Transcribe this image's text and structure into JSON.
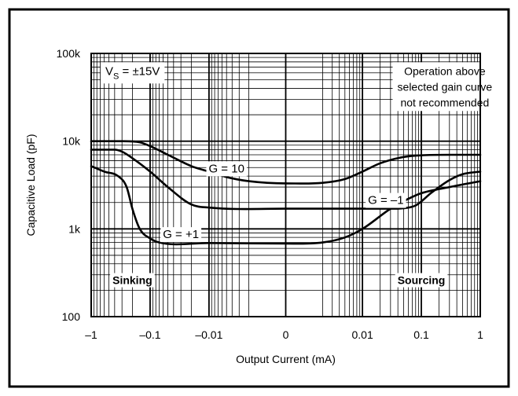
{
  "chart_data": {
    "type": "line",
    "xlabel": "Output Current (mA)",
    "ylabel": "Capacitive Load (pF)",
    "x_scale": "signed-log (sinh)",
    "y_scale": "log",
    "xlim": [
      -1,
      1
    ],
    "ylim": [
      100,
      100000
    ],
    "grid": true,
    "x_ticks": [
      {
        "value": -1,
        "label": "–1"
      },
      {
        "value": -0.1,
        "label": "–0.1"
      },
      {
        "value": -0.01,
        "label": "–0.01"
      },
      {
        "value": 0,
        "label": "0"
      },
      {
        "value": 0.01,
        "label": "0.01"
      },
      {
        "value": 0.1,
        "label": "0.1"
      },
      {
        "value": 1,
        "label": "1"
      }
    ],
    "y_ticks": [
      {
        "value": 100,
        "label": "100"
      },
      {
        "value": 1000,
        "label": "1k"
      },
      {
        "value": 10000,
        "label": "10k"
      },
      {
        "value": 100000,
        "label": "100k"
      }
    ],
    "condition": {
      "v": "V",
      "sub": "S",
      "rest": " = ±15V"
    },
    "note": [
      "Operation above",
      "selected gain curve",
      "not recommended"
    ],
    "regions": {
      "left": "Sinking",
      "right": "Sourcing"
    },
    "series": [
      {
        "name": "G = 10",
        "points": [
          [
            -1,
            10000
          ],
          [
            -0.3,
            10000
          ],
          [
            -0.15,
            9700
          ],
          [
            -0.1,
            8800
          ],
          [
            -0.05,
            7000
          ],
          [
            -0.02,
            5200
          ],
          [
            -0.01,
            4500
          ],
          [
            -0.005,
            3900
          ],
          [
            -0.002,
            3500
          ],
          [
            0,
            3300
          ],
          [
            0.002,
            3350
          ],
          [
            0.005,
            3700
          ],
          [
            0.01,
            4500
          ],
          [
            0.02,
            5600
          ],
          [
            0.05,
            6600
          ],
          [
            0.1,
            6900
          ],
          [
            0.3,
            7000
          ],
          [
            1,
            7000
          ]
        ]
      },
      {
        "name": "G = –1",
        "points": [
          [
            -1,
            8000
          ],
          [
            -0.4,
            8000
          ],
          [
            -0.3,
            7600
          ],
          [
            -0.2,
            6400
          ],
          [
            -0.1,
            4500
          ],
          [
            -0.05,
            3000
          ],
          [
            -0.02,
            1900
          ],
          [
            -0.01,
            1750
          ],
          [
            0,
            1700
          ],
          [
            0.01,
            1700
          ],
          [
            0.03,
            1700
          ],
          [
            0.05,
            1720
          ],
          [
            0.08,
            1850
          ],
          [
            0.15,
            2600
          ],
          [
            0.3,
            3600
          ],
          [
            0.5,
            4200
          ],
          [
            1,
            4500
          ]
        ]
      },
      {
        "name": "G = +1",
        "points": [
          [
            -1,
            5200
          ],
          [
            -0.6,
            4500
          ],
          [
            -0.35,
            4000
          ],
          [
            -0.25,
            3000
          ],
          [
            -0.2,
            1700
          ],
          [
            -0.15,
            1000
          ],
          [
            -0.1,
            780
          ],
          [
            -0.07,
            700
          ],
          [
            -0.01,
            690
          ],
          [
            0,
            680
          ],
          [
            0.002,
            700
          ],
          [
            0.005,
            800
          ],
          [
            0.01,
            1000
          ],
          [
            0.03,
            1700
          ],
          [
            0.06,
            2200
          ],
          [
            0.1,
            2550
          ],
          [
            0.3,
            3000
          ],
          [
            1,
            3500
          ]
        ]
      }
    ]
  }
}
